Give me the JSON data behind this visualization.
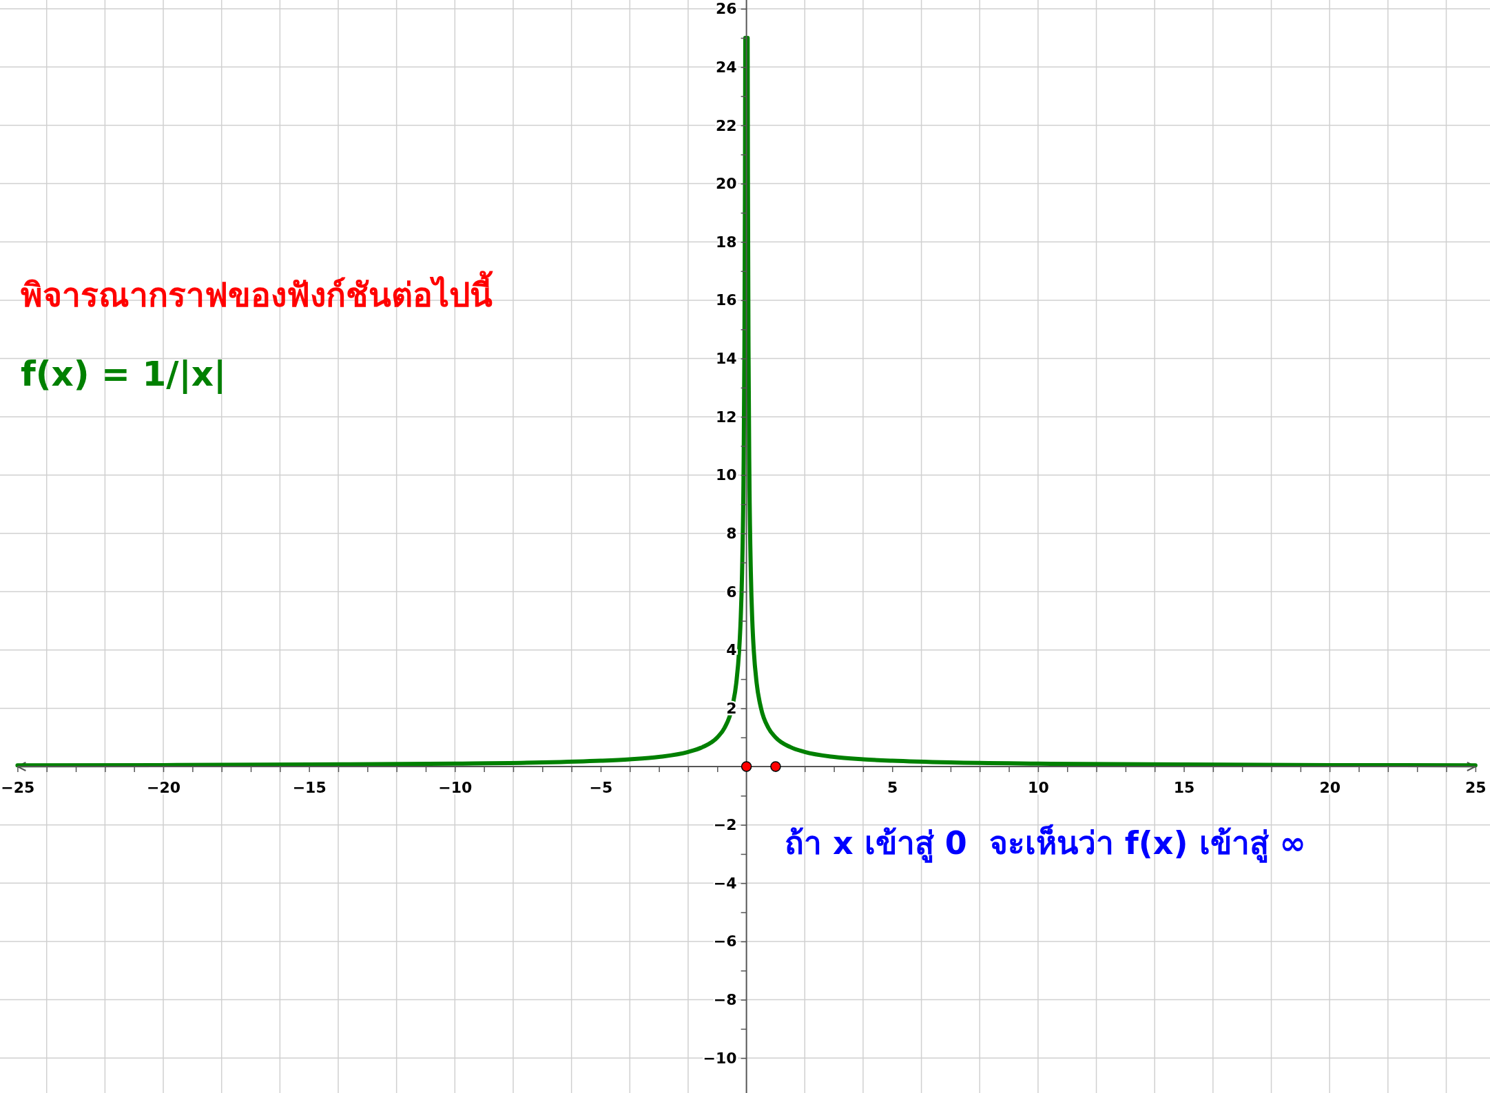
{
  "chart_data": {
    "type": "line",
    "title": "พิจารณากราฟของฟังก์ชันต่อไปนี้",
    "annotations": [
      "f(x) = 1/|x|",
      "ถ้า x เข้าสู่ 0  จะเห็นว่า f(x) เข้าสู่ ∞"
    ],
    "xlim": [
      -25.6,
      25.5
    ],
    "ylim": [
      -11.2,
      26.3
    ],
    "xticks": [
      {
        "value": -25,
        "label": "−25"
      },
      {
        "value": -24,
        "label": null
      },
      {
        "value": -23,
        "label": null
      },
      {
        "value": -22,
        "label": null
      },
      {
        "value": -21,
        "label": null
      },
      {
        "value": -20,
        "label": "−20"
      },
      {
        "value": -19,
        "label": null
      },
      {
        "value": -18,
        "label": null
      },
      {
        "value": -17,
        "label": null
      },
      {
        "value": -16,
        "label": null
      },
      {
        "value": -15,
        "label": "−15"
      },
      {
        "value": -14,
        "label": null
      },
      {
        "value": -13,
        "label": null
      },
      {
        "value": -12,
        "label": null
      },
      {
        "value": -11,
        "label": null
      },
      {
        "value": -10,
        "label": "−10"
      },
      {
        "value": -9,
        "label": null
      },
      {
        "value": -8,
        "label": null
      },
      {
        "value": -7,
        "label": null
      },
      {
        "value": -6,
        "label": null
      },
      {
        "value": -5,
        "label": "−5"
      },
      {
        "value": -4,
        "label": null
      },
      {
        "value": -3,
        "label": null
      },
      {
        "value": -2,
        "label": null
      },
      {
        "value": -1,
        "label": null
      },
      {
        "value": 0,
        "label": null
      },
      {
        "value": 1,
        "label": null
      },
      {
        "value": 2,
        "label": null
      },
      {
        "value": 3,
        "label": null
      },
      {
        "value": 4,
        "label": null
      },
      5,
      {
        "value": 6,
        "label": null
      },
      {
        "value": 7,
        "label": null
      },
      {
        "value": 8,
        "label": null
      },
      {
        "value": 9,
        "label": null
      },
      10,
      {
        "value": 11,
        "label": null
      },
      {
        "value": 12,
        "label": null
      },
      {
        "value": 13,
        "label": null
      },
      {
        "value": 14,
        "label": null
      },
      15,
      {
        "value": 16,
        "label": null
      },
      {
        "value": 17,
        "label": null
      },
      {
        "value": 18,
        "label": null
      },
      {
        "value": 19,
        "label": null
      },
      20,
      {
        "value": 21,
        "label": null
      },
      {
        "value": 22,
        "label": null
      },
      {
        "value": 23,
        "label": null
      },
      {
        "value": 24,
        "label": null
      },
      25
    ],
    "yticks": [
      {
        "value": -10,
        "label": "−10"
      },
      {
        "value": -9,
        "label": null
      },
      {
        "value": -8,
        "label": "−8"
      },
      {
        "value": -7,
        "label": null
      },
      {
        "value": -6,
        "label": "−6"
      },
      {
        "value": -5,
        "label": null
      },
      {
        "value": -4,
        "label": "−4"
      },
      {
        "value": -3,
        "label": null
      },
      {
        "value": -2,
        "label": "−2"
      },
      {
        "value": -1,
        "label": null
      },
      {
        "value": 0,
        "label": null
      },
      {
        "value": 1,
        "label": null
      },
      2,
      {
        "value": 3,
        "label": null
      },
      4,
      {
        "value": 5,
        "label": null
      },
      6,
      {
        "value": 7,
        "label": null
      },
      8,
      {
        "value": 9,
        "label": null
      },
      10,
      {
        "value": 11,
        "label": null
      },
      12,
      {
        "value": 13,
        "label": null
      },
      14,
      {
        "value": 15,
        "label": null
      },
      16,
      {
        "value": 17,
        "label": null
      },
      18,
      {
        "value": 19,
        "label": null
      },
      20,
      {
        "value": 21,
        "label": null
      },
      22,
      {
        "value": 23,
        "label": null
      },
      24,
      {
        "value": 25,
        "label": null
      },
      26
    ],
    "grid": true,
    "series": [
      {
        "type": "line",
        "color": "#008000",
        "marker": "none",
        "line_style": "solid",
        "x": [
          -25,
          -20,
          -15,
          -10,
          -7,
          -5,
          -4,
          -3,
          -2,
          -1.5,
          -1,
          -0.75,
          -0.5,
          -0.35,
          -0.25,
          -0.2,
          -0.15,
          -0.1,
          -0.07,
          -0.05,
          -0.04,
          0,
          0.04,
          0.05,
          0.07,
          0.1,
          0.15,
          0.2,
          0.25,
          0.35,
          0.5,
          0.75,
          1,
          1.5,
          2,
          3,
          4,
          5,
          7,
          10,
          15,
          20,
          25
        ],
        "values": [
          0.04,
          0.05,
          0.07,
          0.1,
          0.14,
          0.2,
          0.25,
          0.33,
          0.5,
          0.67,
          1,
          1.33,
          2,
          2.86,
          4,
          5,
          6.67,
          10,
          14.29,
          20,
          25,
          null,
          25,
          20,
          14.29,
          10,
          6.67,
          5,
          4,
          2.86,
          2,
          1.33,
          1,
          0.67,
          0.5,
          0.33,
          0.25,
          0.2,
          0.14,
          0.1,
          0.07,
          0.05,
          0.04
        ]
      },
      {
        "type": "scatter",
        "color": "#ff0000",
        "marker": "circle",
        "x": [
          0,
          1
        ],
        "values": [
          0,
          0
        ]
      }
    ]
  }
}
